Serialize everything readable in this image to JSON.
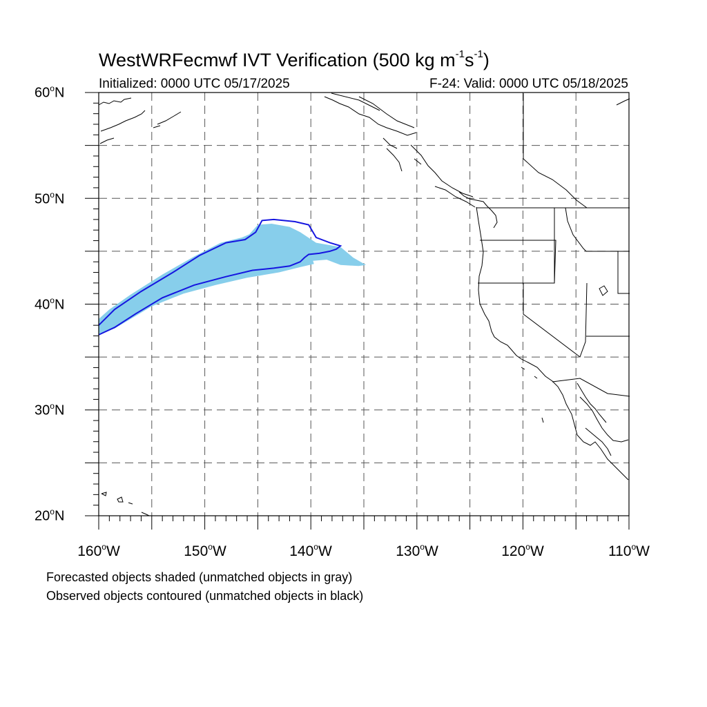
{
  "figure": {
    "title_main": "WestWRFecmwf IVT Verification (500 kg m",
    "title_unit_exp1": "-1",
    "title_unit_s": "s",
    "title_unit_exp2": "-1",
    "title_close": ")",
    "initialized": "Initialized: 0000 UTC 05/17/2025",
    "valid": "F-24: Valid: 0000 UTC 05/18/2025"
  },
  "map": {
    "projection": "cylindrical equidistant",
    "lon_range": [
      -160,
      -110
    ],
    "lat_range": [
      20,
      60
    ],
    "grid": "dashed every 5 degrees",
    "lat_ticks": [
      {
        "value": 60,
        "num": "60",
        "deg": "o",
        "hem": "N"
      },
      {
        "value": 50,
        "num": "50",
        "deg": "o",
        "hem": "N"
      },
      {
        "value": 40,
        "num": "40",
        "deg": "o",
        "hem": "N"
      },
      {
        "value": 30,
        "num": "30",
        "deg": "o",
        "hem": "N"
      },
      {
        "value": 20,
        "num": "20",
        "deg": "o",
        "hem": "N"
      }
    ],
    "lon_ticks": [
      {
        "value": -160,
        "num": "160",
        "deg": "o",
        "hem": "W"
      },
      {
        "value": -150,
        "num": "150",
        "deg": "o",
        "hem": "W"
      },
      {
        "value": -140,
        "num": "140",
        "deg": "o",
        "hem": "W"
      },
      {
        "value": -130,
        "num": "130",
        "deg": "o",
        "hem": "W"
      },
      {
        "value": -120,
        "num": "120",
        "deg": "o",
        "hem": "W"
      },
      {
        "value": -110,
        "num": "110",
        "deg": "o",
        "hem": "W"
      }
    ],
    "forecast_object": {
      "style": "shaded",
      "color": "#87ceeb",
      "lon_lat": [
        [
          -160,
          37.2
        ],
        [
          -158.5,
          37.7
        ],
        [
          -157,
          38.6
        ],
        [
          -155,
          39.8
        ],
        [
          -152,
          41.0
        ],
        [
          -149,
          41.8
        ],
        [
          -146,
          42.5
        ],
        [
          -143,
          43.0
        ],
        [
          -141,
          43.5
        ],
        [
          -139.7,
          43.8
        ],
        [
          -139.8,
          44.1
        ],
        [
          -138.5,
          44.2
        ],
        [
          -137.2,
          43.7
        ],
        [
          -135.5,
          43.6
        ],
        [
          -134.8,
          43.7
        ],
        [
          -136,
          44.4
        ],
        [
          -137.2,
          45.4
        ],
        [
          -139.5,
          45.8
        ],
        [
          -141,
          46.8
        ],
        [
          -142,
          47.3
        ],
        [
          -143.7,
          47.6
        ],
        [
          -145,
          47.5
        ],
        [
          -145.8,
          46.6
        ],
        [
          -146.5,
          46.3
        ],
        [
          -148.5,
          45.8
        ],
        [
          -151,
          44.5
        ],
        [
          -154,
          42.8
        ],
        [
          -157,
          40.9
        ],
        [
          -159,
          39.5
        ],
        [
          -160,
          38.6
        ]
      ]
    },
    "observed_object": {
      "style": "contour",
      "color": "#1515e0",
      "lon_lat": [
        [
          -160,
          38.0
        ],
        [
          -158.5,
          39.5
        ],
        [
          -156,
          41.2
        ],
        [
          -153,
          43.0
        ],
        [
          -150.5,
          44.6
        ],
        [
          -148,
          45.8
        ],
        [
          -146.2,
          46.1
        ],
        [
          -145.2,
          46.8
        ],
        [
          -144.6,
          47.9
        ],
        [
          -143.5,
          48.0
        ],
        [
          -141.5,
          47.8
        ],
        [
          -140.2,
          47.5
        ],
        [
          -139.5,
          46.3
        ],
        [
          -138.2,
          45.8
        ],
        [
          -137.2,
          45.5
        ],
        [
          -137.6,
          45.2
        ],
        [
          -138.2,
          45.0
        ],
        [
          -139.2,
          44.8
        ],
        [
          -140.2,
          44.7
        ],
        [
          -140.6,
          44.4
        ],
        [
          -141,
          44.0
        ],
        [
          -142,
          43.6
        ],
        [
          -143.5,
          43.4
        ],
        [
          -145.5,
          43.2
        ],
        [
          -148,
          42.6
        ],
        [
          -151,
          41.8
        ],
        [
          -154,
          40.6
        ],
        [
          -156.5,
          39.1
        ],
        [
          -158.5,
          37.8
        ],
        [
          -160,
          37.1
        ]
      ]
    }
  },
  "legend_notes": {
    "line1": "Forecasted objects shaded (unmatched objects in gray)",
    "line2": "Observed objects contoured (unmatched objects in black)"
  }
}
